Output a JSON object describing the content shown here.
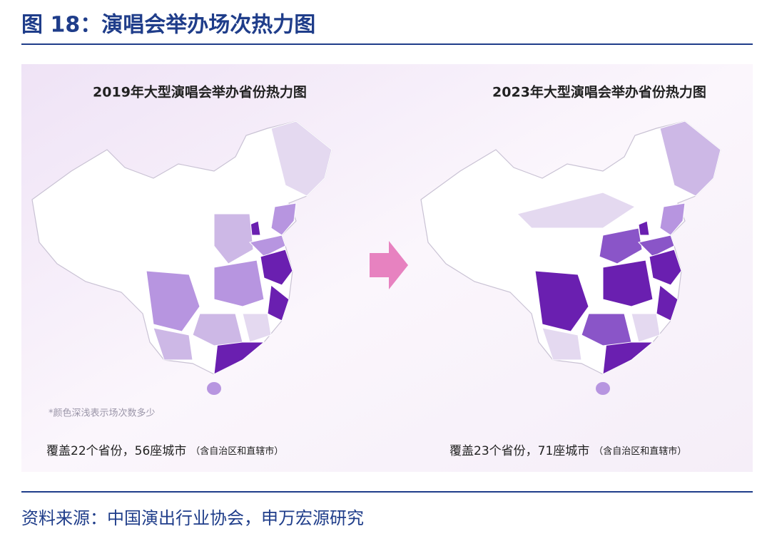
{
  "header": {
    "title": "图 18：演唱会举办场次热力图"
  },
  "panels": [
    {
      "title": "2019年大型演唱会举办省份热力图",
      "coverage": "覆盖22个省份，56座城市",
      "coverage_note": "（含自治区和直辖市）"
    },
    {
      "title": "2023年大型演唱会举办省份热力图",
      "coverage": "覆盖23个省份，71座城市",
      "coverage_note": "（含自治区和直辖市）"
    }
  ],
  "legend_note": "*颜色深浅表示场次数多少",
  "source": "资料来源：中国演出行业协会，申万宏源研究"
}
